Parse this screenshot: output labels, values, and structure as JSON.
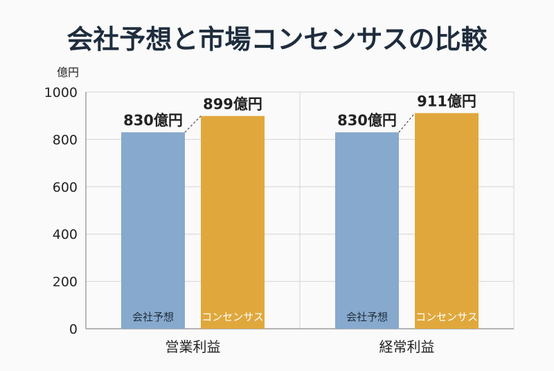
{
  "chart_data": {
    "type": "bar",
    "title": "会社予想と市場コンセンサスの比較",
    "ylabel": "億円",
    "ylim": [
      0,
      1000
    ],
    "yticks": [
      0,
      200,
      400,
      600,
      800,
      1000
    ],
    "categories": [
      "営業利益",
      "経常利益"
    ],
    "series": [
      {
        "name": "会社予想",
        "color": "#87a9cd",
        "text_color": "#1f2d3d",
        "values": [
          830,
          830
        ],
        "value_labels": [
          "830億円",
          "830億円"
        ]
      },
      {
        "name": "コンセンサス",
        "color": "#e0a83c",
        "text_color": "#ffffff",
        "values": [
          899,
          911
        ],
        "value_labels": [
          "899億円",
          "911億円"
        ]
      }
    ],
    "grid": true,
    "legend": "in-bar labels"
  }
}
